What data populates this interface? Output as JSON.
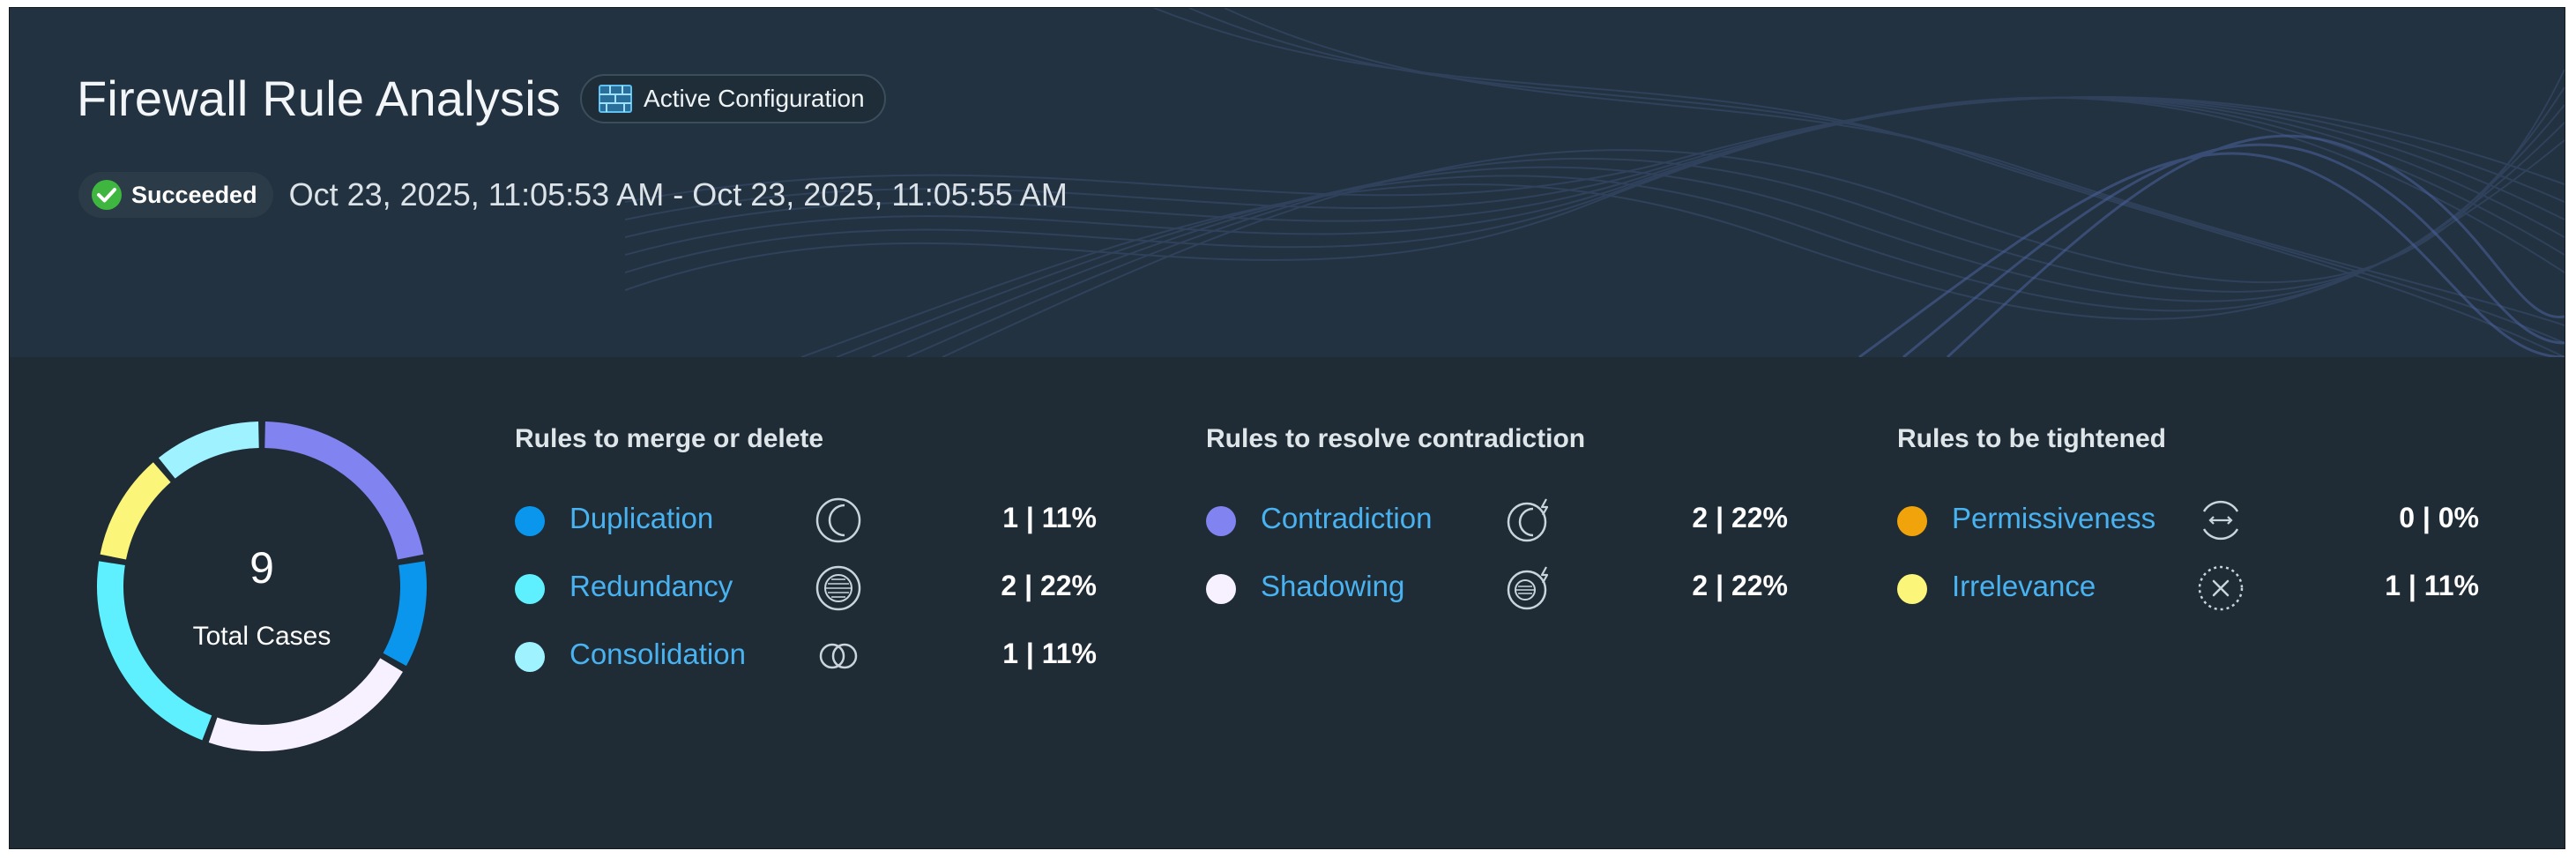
{
  "header": {
    "title": "Firewall Rule Analysis",
    "config_label": "Active Configuration",
    "status": "Succeeded",
    "time_range": "Oct 23, 2025, 11:05:53 AM - Oct 23, 2025, 11:05:55 AM"
  },
  "summary": {
    "total": "9",
    "total_label": "Total Cases"
  },
  "groups": [
    {
      "title": "Rules to merge or delete",
      "items": [
        {
          "label": "Duplication",
          "value": "1 | 11%",
          "color": "#0a96ec",
          "icon": "duplication-icon"
        },
        {
          "label": "Redundancy",
          "value": "2 | 22%",
          "color": "#5ef0ff",
          "icon": "redundancy-icon"
        },
        {
          "label": "Consolidation",
          "value": "1 | 11%",
          "color": "#9ff2ff",
          "icon": "consolidation-icon"
        }
      ]
    },
    {
      "title": "Rules to resolve contradiction",
      "items": [
        {
          "label": "Contradiction",
          "value": "2 | 22%",
          "color": "#8183f0",
          "icon": "contradiction-icon"
        },
        {
          "label": "Shadowing",
          "value": "2 | 22%",
          "color": "#f7f1ff",
          "icon": "shadowing-icon"
        }
      ]
    },
    {
      "title": "Rules to be tightened",
      "items": [
        {
          "label": "Permissiveness",
          "value": "0 | 0%",
          "color": "#f0a30a",
          "icon": "permissiveness-icon"
        },
        {
          "label": "Irrelevance",
          "value": "1 | 11%",
          "color": "#fbf67a",
          "icon": "irrelevance-icon"
        }
      ]
    }
  ],
  "chart_data": {
    "type": "pie",
    "categories": [
      "Contradiction",
      "Duplication",
      "Shadowing",
      "Redundancy",
      "Irrelevance",
      "Consolidation",
      "Permissiveness"
    ],
    "values": [
      2,
      1,
      2,
      2,
      1,
      1,
      0
    ],
    "colors": [
      "#8183f0",
      "#0a96ec",
      "#f7f1ff",
      "#5ef0ff",
      "#fbf67a",
      "#9ff2ff",
      "#f0a30a"
    ]
  }
}
